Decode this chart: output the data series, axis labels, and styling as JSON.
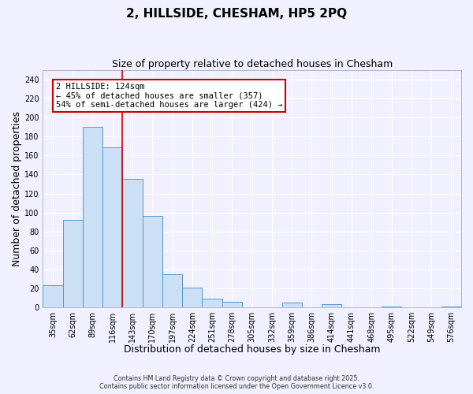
{
  "title": "2, HILLSIDE, CHESHAM, HP5 2PQ",
  "subtitle": "Size of property relative to detached houses in Chesham",
  "xlabel": "Distribution of detached houses by size in Chesham",
  "ylabel": "Number of detached properties",
  "categories": [
    "35sqm",
    "62sqm",
    "89sqm",
    "116sqm",
    "143sqm",
    "170sqm",
    "197sqm",
    "224sqm",
    "251sqm",
    "278sqm",
    "305sqm",
    "332sqm",
    "359sqm",
    "386sqm",
    "414sqm",
    "441sqm",
    "468sqm",
    "495sqm",
    "522sqm",
    "549sqm",
    "576sqm"
  ],
  "values": [
    23,
    92,
    190,
    169,
    135,
    96,
    35,
    21,
    9,
    6,
    0,
    0,
    5,
    0,
    3,
    0,
    0,
    1,
    0,
    0,
    1
  ],
  "bar_color": "#cce0f5",
  "bar_edge_color": "#5599cc",
  "vline_color": "#cc0000",
  "vline_position": 3.5,
  "ylim": [
    0,
    250
  ],
  "yticks": [
    0,
    20,
    40,
    60,
    80,
    100,
    120,
    140,
    160,
    180,
    200,
    220,
    240
  ],
  "annotation_title": "2 HILLSIDE: 124sqm",
  "annotation_line1": "← 45% of detached houses are smaller (357)",
  "annotation_line2": "54% of semi-detached houses are larger (424) →",
  "annotation_box_color": "#ffffff",
  "annotation_box_edge": "#cc0000",
  "footer1": "Contains HM Land Registry data © Crown copyright and database right 2025.",
  "footer2": "Contains public sector information licensed under the Open Government Licence v3.0.",
  "background_color": "#f0f0ff",
  "grid_color": "#ffffff",
  "title_fontsize": 11,
  "subtitle_fontsize": 9,
  "label_fontsize": 9,
  "tick_fontsize": 7,
  "annotation_fontsize": 7.5
}
